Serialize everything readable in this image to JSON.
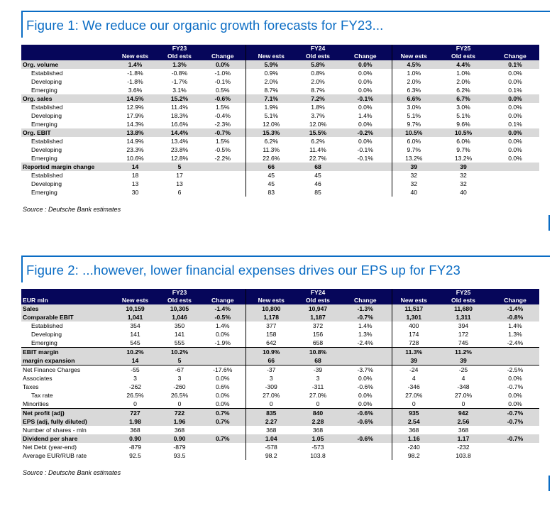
{
  "figure1": {
    "title": "Figure 1: We reduce our organic growth forecasts for FY23...",
    "header_label": "",
    "years": [
      "FY23",
      "FY24",
      "FY25"
    ],
    "col_headers": [
      "New ests",
      "Old ests",
      "Change"
    ],
    "rows": [
      {
        "label": "Org. volume",
        "style": "hi",
        "values": [
          "1.4%",
          "1.3%",
          "0.0%",
          "5.9%",
          "5.8%",
          "0.0%",
          "4.5%",
          "4.4%",
          "0.1%"
        ]
      },
      {
        "label": "Established",
        "style": "ind",
        "values": [
          "-1.8%",
          "-0.8%",
          "-1.0%",
          "0.9%",
          "0.8%",
          "0.0%",
          "1.0%",
          "1.0%",
          "0.0%"
        ]
      },
      {
        "label": "Developing",
        "style": "ind",
        "values": [
          "-1.8%",
          "-1.7%",
          "-0.1%",
          "2.0%",
          "2.0%",
          "0.0%",
          "2.0%",
          "2.0%",
          "0.0%"
        ]
      },
      {
        "label": "Emerging",
        "style": "ind",
        "values": [
          "3.6%",
          "3.1%",
          "0.5%",
          "8.7%",
          "8.7%",
          "0.0%",
          "6.3%",
          "6.2%",
          "0.1%"
        ]
      },
      {
        "label": "Org. sales",
        "style": "hi",
        "values": [
          "14.5%",
          "15.2%",
          "-0.6%",
          "7.1%",
          "7.2%",
          "-0.1%",
          "6.6%",
          "6.7%",
          "0.0%"
        ]
      },
      {
        "label": "Established",
        "style": "ind",
        "values": [
          "12.9%",
          "11.4%",
          "1.5%",
          "1.9%",
          "1.8%",
          "0.0%",
          "3.0%",
          "3.0%",
          "0.0%"
        ]
      },
      {
        "label": "Developing",
        "style": "ind",
        "values": [
          "17.9%",
          "18.3%",
          "-0.4%",
          "5.1%",
          "3.7%",
          "1.4%",
          "5.1%",
          "5.1%",
          "0.0%"
        ]
      },
      {
        "label": "Emerging",
        "style": "ind",
        "values": [
          "14.3%",
          "16.6%",
          "-2.3%",
          "12.0%",
          "12.0%",
          "0.0%",
          "9.7%",
          "9.6%",
          "0.1%"
        ]
      },
      {
        "label": "Org. EBIT",
        "style": "hi",
        "values": [
          "13.8%",
          "14.4%",
          "-0.7%",
          "15.3%",
          "15.5%",
          "-0.2%",
          "10.5%",
          "10.5%",
          "0.0%"
        ]
      },
      {
        "label": "Established",
        "style": "ind",
        "values": [
          "14.9%",
          "13.4%",
          "1.5%",
          "6.2%",
          "6.2%",
          "0.0%",
          "6.0%",
          "6.0%",
          "0.0%"
        ]
      },
      {
        "label": "Developing",
        "style": "ind",
        "values": [
          "23.3%",
          "23.8%",
          "-0.5%",
          "11.3%",
          "11.4%",
          "-0.1%",
          "9.7%",
          "9.7%",
          "0.0%"
        ]
      },
      {
        "label": "Emerging",
        "style": "ind",
        "values": [
          "10.6%",
          "12.8%",
          "-2.2%",
          "22.6%",
          "22.7%",
          "-0.1%",
          "13.2%",
          "13.2%",
          "0.0%"
        ]
      },
      {
        "label": "Reported margin change",
        "style": "hi",
        "values": [
          "14",
          "5",
          "",
          "66",
          "68",
          "",
          "39",
          "39",
          ""
        ]
      },
      {
        "label": "Established",
        "style": "ind",
        "values": [
          "18",
          "17",
          "",
          "45",
          "45",
          "",
          "32",
          "32",
          ""
        ]
      },
      {
        "label": "Developing",
        "style": "ind",
        "values": [
          "13",
          "13",
          "",
          "45",
          "46",
          "",
          "32",
          "32",
          ""
        ]
      },
      {
        "label": "Emerging",
        "style": "ind",
        "values": [
          "30",
          "6",
          "",
          "83",
          "85",
          "",
          "40",
          "40",
          ""
        ]
      }
    ],
    "source": "Source : Deutsche Bank estimates"
  },
  "figure2": {
    "title": "Figure 2: ...however, lower financial expenses drives our EPS up for FY23",
    "header_label": "EUR mln",
    "years": [
      "FY23",
      "FY24",
      "FY25"
    ],
    "col_headers": [
      "New ests",
      "Old ests",
      "Change"
    ],
    "rows": [
      {
        "label": "Sales",
        "style": "hi",
        "values": [
          "10,159",
          "10,305",
          "-1.4%",
          "10,800",
          "10,947",
          "-1.3%",
          "11,517",
          "11,680",
          "-1.4%"
        ]
      },
      {
        "label": "Comparable EBIT",
        "style": "hi",
        "values": [
          "1,041",
          "1,046",
          "-0.5%",
          "1,178",
          "1,187",
          "-0.7%",
          "1,301",
          "1,311",
          "-0.8%"
        ]
      },
      {
        "label": "Established",
        "style": "ind",
        "values": [
          "354",
          "350",
          "1.4%",
          "377",
          "372",
          "1.4%",
          "400",
          "394",
          "1.4%"
        ]
      },
      {
        "label": "Developing",
        "style": "ind",
        "values": [
          "141",
          "141",
          "0.0%",
          "158",
          "156",
          "1.3%",
          "174",
          "172",
          "1.3%"
        ]
      },
      {
        "label": "Emerging",
        "style": "ind",
        "values": [
          "545",
          "555",
          "-1.9%",
          "642",
          "658",
          "-2.4%",
          "728",
          "745",
          "-2.4%"
        ]
      },
      {
        "label": "EBIT margin",
        "style": "hi bt",
        "values": [
          "10.2%",
          "10.2%",
          "",
          "10.9%",
          "10.8%",
          "",
          "11.3%",
          "11.2%",
          ""
        ]
      },
      {
        "label": " margin expansion",
        "style": "hi",
        "values": [
          "14",
          "5",
          "",
          "66",
          "68",
          "",
          "39",
          "39",
          ""
        ]
      },
      {
        "label": "Net Finance Charges",
        "style": "bt",
        "values": [
          "-55",
          "-67",
          "-17.6%",
          "-37",
          "-39",
          "-3.7%",
          "-24",
          "-25",
          "-2.5%"
        ]
      },
      {
        "label": "Associates",
        "style": "",
        "values": [
          "3",
          "3",
          "0.0%",
          "3",
          "3",
          "0.0%",
          "4",
          "4",
          "0.0%"
        ]
      },
      {
        "label": "Taxes",
        "style": "",
        "values": [
          "-262",
          "-260",
          "0.6%",
          "-309",
          "-311",
          "-0.6%",
          "-346",
          "-348",
          "-0.7%"
        ]
      },
      {
        "label": "Tax rate",
        "style": "ind",
        "values": [
          "26.5%",
          "26.5%",
          "0.0%",
          "27.0%",
          "27.0%",
          "0.0%",
          "27.0%",
          "27.0%",
          "0.0%"
        ]
      },
      {
        "label": "Minorities",
        "style": "",
        "values": [
          "0",
          "0",
          "0.0%",
          "0",
          "0",
          "0.0%",
          "0",
          "0",
          "0.0%"
        ]
      },
      {
        "label": "Net profit (adj)",
        "style": "hi bt",
        "values": [
          "727",
          "722",
          "0.7%",
          "835",
          "840",
          "-0.6%",
          "935",
          "942",
          "-0.7%"
        ]
      },
      {
        "label": "EPS (adj, fully diluted)",
        "style": "hi",
        "values": [
          "1.98",
          "1.96",
          "0.7%",
          "2.27",
          "2.28",
          "-0.6%",
          "2.54",
          "2.56",
          "-0.7%"
        ]
      },
      {
        "label": "Number of shares - mln",
        "style": "",
        "values": [
          "368",
          "368",
          "",
          "368",
          "368",
          "",
          "368",
          "368",
          ""
        ]
      },
      {
        "label": "Dividend per share",
        "style": "hi",
        "values": [
          "0.90",
          "0.90",
          "0.7%",
          "1.04",
          "1.05",
          "-0.6%",
          "1.16",
          "1.17",
          "-0.7%"
        ]
      },
      {
        "label": "Net Debt (year-end)",
        "style": "",
        "values": [
          "-879",
          "-879",
          "",
          "-578",
          "-573",
          "",
          "-240",
          "-232",
          ""
        ]
      },
      {
        "label": "Average EUR/RUB rate",
        "style": "",
        "values": [
          "92.5",
          "93.5",
          "",
          "98.2",
          "103.8",
          "",
          "98.2",
          "103.8",
          ""
        ]
      }
    ],
    "source": "Source : Deutsche Bank estimates"
  }
}
